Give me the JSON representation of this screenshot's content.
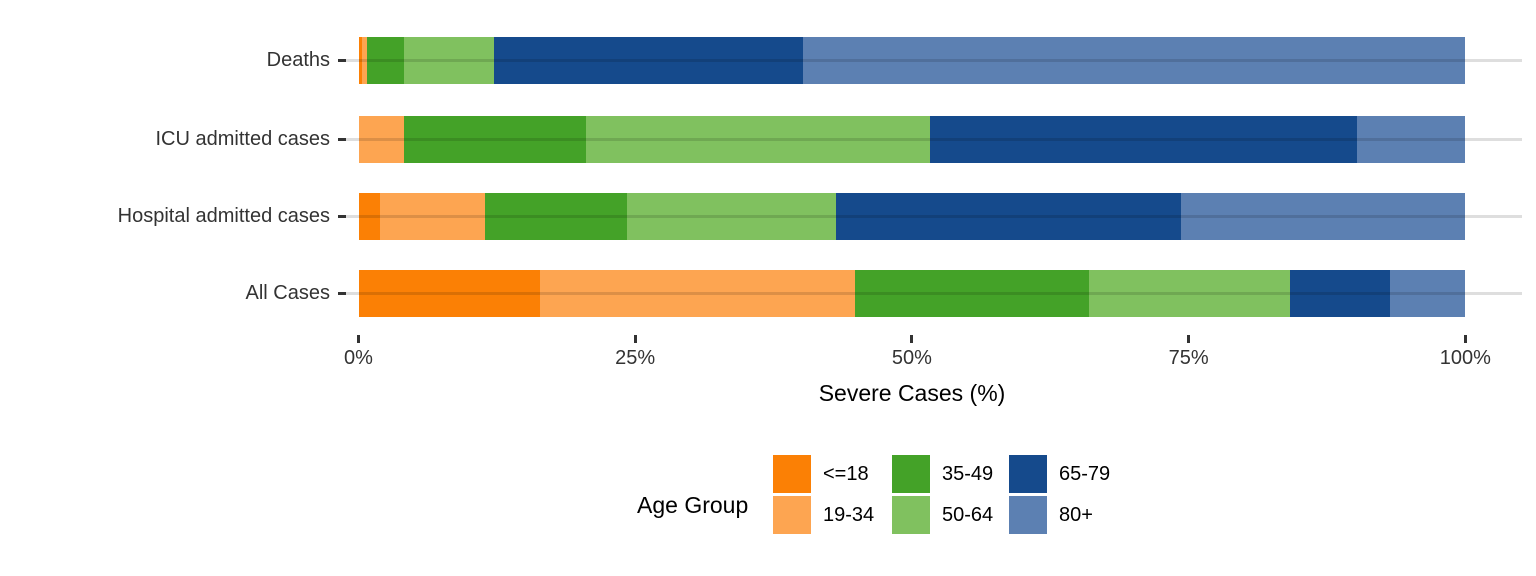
{
  "chart_data": {
    "type": "bar",
    "variant": "horizontal_stacked_percent",
    "title": "",
    "xlabel": "Severe Cases (%)",
    "ylabel": "",
    "xlim": [
      0,
      100
    ],
    "grid": "horizontal category lines only",
    "categories": [
      "Deaths",
      "ICU admitted cases",
      "Hospital admitted cases",
      "All Cases"
    ],
    "x_ticks": [
      {
        "value": 0,
        "label": "0%"
      },
      {
        "value": 25,
        "label": "25%"
      },
      {
        "value": 50,
        "label": "50%"
      },
      {
        "value": 75,
        "label": "75%"
      },
      {
        "value": 100,
        "label": "100%"
      }
    ],
    "legend_title": "Age Group",
    "legend_position": "bottom",
    "series": [
      {
        "name": "<=18",
        "color": "#FB8005",
        "values": [
          0.3,
          0.0,
          1.9,
          16.4
        ]
      },
      {
        "name": "19-34",
        "color": "#FDA551",
        "values": [
          0.5,
          4.1,
          9.5,
          28.5
        ]
      },
      {
        "name": "35-49",
        "color": "#44A228",
        "values": [
          3.3,
          16.5,
          12.9,
          21.1
        ]
      },
      {
        "name": "50-64",
        "color": "#80C15F",
        "values": [
          8.1,
          31.0,
          18.8,
          18.2
        ]
      },
      {
        "name": "65-79",
        "color": "#154A8C",
        "values": [
          28.0,
          38.6,
          31.2,
          9.0
        ]
      },
      {
        "name": "80+",
        "color": "#5C80B2",
        "values": [
          59.8,
          9.8,
          25.7,
          6.8
        ]
      }
    ]
  }
}
